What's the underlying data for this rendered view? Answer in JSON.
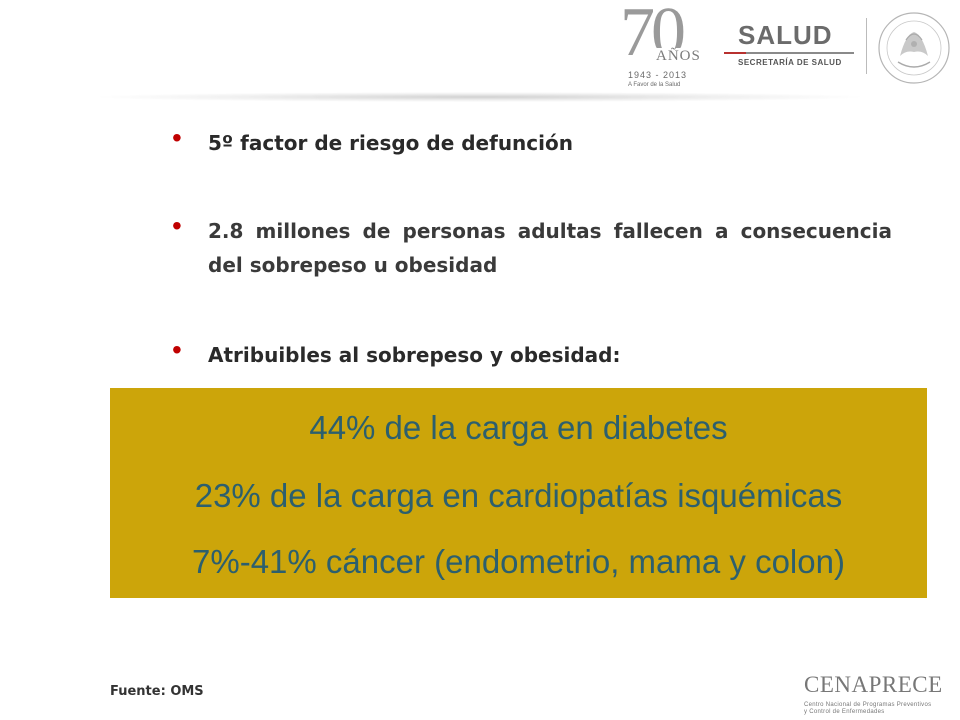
{
  "header": {
    "anniversary_logo": {
      "number": "70",
      "word": "AÑOS",
      "years": "1943 - 2013",
      "tagline": "A Favor de la Salud"
    },
    "salud_logo": {
      "word": "SALUD",
      "subtitle": "SECRETARÍA DE SALUD"
    },
    "seal_icon": "estados-unidos-mexicanos-seal-icon"
  },
  "bullets": [
    {
      "text": "5º factor de riesgo de defunción"
    },
    {
      "text": "2.8 millones de personas adultas fallecen a consecuencia del sobrepeso u obesidad"
    },
    {
      "text": "Atribuibles al sobrepeso y obesidad:"
    }
  ],
  "highlight": {
    "background": "#cca50a",
    "text_color": "#2c5f6e",
    "lines": [
      "44% de la carga en diabetes",
      "23% de la carga en cardiopatías isquémicas",
      "7%-41% cáncer (endometrio, mama y colon)"
    ]
  },
  "source": "Fuente: OMS",
  "footer_logo": {
    "word": "CENAPRECE",
    "subtitle_line1": "Centro Nacional de Programas Preventivos",
    "subtitle_line2": "y Control de Enfermedades"
  },
  "colors": {
    "bullet": "#c00000",
    "body_text": "#2a2a2a"
  }
}
